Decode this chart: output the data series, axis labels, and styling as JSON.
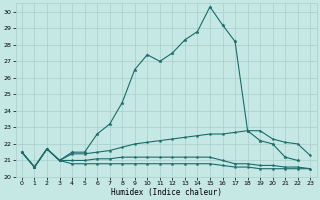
{
  "xlabel": "Humidex (Indice chaleur)",
  "bg_color": "#c5e8e5",
  "grid_color": "#a8cecc",
  "line_color": "#1a6b6b",
  "xlim": [
    -0.5,
    23.5
  ],
  "ylim": [
    20,
    30.5
  ],
  "x_ticks": [
    0,
    1,
    2,
    3,
    4,
    5,
    6,
    7,
    8,
    9,
    10,
    11,
    12,
    13,
    14,
    15,
    16,
    17,
    18,
    19,
    20,
    21,
    22,
    23
  ],
  "y_ticks": [
    20,
    21,
    22,
    23,
    24,
    25,
    26,
    27,
    28,
    29,
    30
  ],
  "series1_x": [
    0,
    1,
    2,
    3,
    4,
    5,
    6,
    7,
    8,
    9,
    10,
    11,
    12,
    13,
    14,
    15,
    16,
    17,
    18,
    19,
    20,
    21,
    22
  ],
  "series1_y": [
    21.5,
    20.6,
    21.7,
    21.0,
    21.5,
    21.5,
    22.6,
    23.2,
    24.5,
    26.5,
    27.4,
    27.0,
    27.5,
    28.3,
    28.8,
    30.3,
    29.2,
    28.2,
    22.8,
    22.2,
    22.0,
    21.2,
    21.0
  ],
  "series2_x": [
    0,
    1,
    2,
    3,
    4,
    5,
    6,
    7,
    8,
    9,
    10,
    11,
    12,
    13,
    14,
    15,
    16,
    17,
    18,
    19,
    20,
    21,
    22,
    23
  ],
  "series2_y": [
    21.5,
    20.6,
    21.7,
    21.0,
    21.4,
    21.4,
    21.5,
    21.6,
    21.8,
    22.0,
    22.1,
    22.2,
    22.3,
    22.4,
    22.5,
    22.6,
    22.6,
    22.7,
    22.8,
    22.8,
    22.3,
    22.1,
    22.0,
    21.3
  ],
  "series3_x": [
    0,
    1,
    2,
    3,
    4,
    5,
    6,
    7,
    8,
    9,
    10,
    11,
    12,
    13,
    14,
    15,
    16,
    17,
    18,
    19,
    20,
    21,
    22,
    23
  ],
  "series3_y": [
    21.5,
    20.6,
    21.7,
    21.0,
    21.0,
    21.0,
    21.1,
    21.1,
    21.2,
    21.2,
    21.2,
    21.2,
    21.2,
    21.2,
    21.2,
    21.2,
    21.0,
    20.8,
    20.8,
    20.7,
    20.7,
    20.6,
    20.6,
    20.5
  ],
  "series4_x": [
    0,
    1,
    2,
    3,
    4,
    5,
    6,
    7,
    8,
    9,
    10,
    11,
    12,
    13,
    14,
    15,
    16,
    17,
    18,
    19,
    20,
    21,
    22,
    23
  ],
  "series4_y": [
    21.5,
    20.6,
    21.7,
    21.0,
    20.8,
    20.8,
    20.8,
    20.8,
    20.8,
    20.8,
    20.8,
    20.8,
    20.8,
    20.8,
    20.8,
    20.8,
    20.7,
    20.6,
    20.6,
    20.5,
    20.5,
    20.5,
    20.5,
    20.5
  ]
}
